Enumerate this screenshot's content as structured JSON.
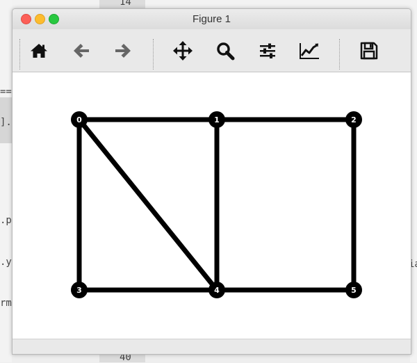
{
  "background": {
    "gutter_top_line": "14",
    "gutter_bottom_line": "40",
    "left_fragments": [
      "==",
      "].p",
      ".p",
      ".y",
      "rm"
    ],
    "right_fragment": "ia"
  },
  "window": {
    "title": "Figure 1",
    "controls": [
      "close",
      "minimize",
      "zoom"
    ]
  },
  "toolbar": {
    "buttons": [
      {
        "name": "home",
        "icon": "home-icon"
      },
      {
        "name": "back",
        "icon": "arrow-left-icon"
      },
      {
        "name": "forward",
        "icon": "arrow-right-icon"
      },
      {
        "name": "pan",
        "icon": "move-icon"
      },
      {
        "name": "zoom",
        "icon": "magnifier-icon"
      },
      {
        "name": "subplots",
        "icon": "sliders-icon"
      },
      {
        "name": "edit-axes",
        "icon": "line-chart-icon"
      },
      {
        "name": "save",
        "icon": "floppy-disk-icon"
      }
    ]
  },
  "graph": {
    "nodes": [
      {
        "id": "0",
        "col": 0,
        "row": 0
      },
      {
        "id": "1",
        "col": 1,
        "row": 0
      },
      {
        "id": "2",
        "col": 2,
        "row": 0
      },
      {
        "id": "3",
        "col": 0,
        "row": 1
      },
      {
        "id": "4",
        "col": 1,
        "row": 1
      },
      {
        "id": "5",
        "col": 2,
        "row": 1
      }
    ],
    "edges": [
      [
        "0",
        "1"
      ],
      [
        "1",
        "2"
      ],
      [
        "0",
        "3"
      ],
      [
        "0",
        "4"
      ],
      [
        "1",
        "4"
      ],
      [
        "2",
        "5"
      ],
      [
        "3",
        "4"
      ],
      [
        "4",
        "5"
      ]
    ],
    "node_color": "#000000",
    "edge_color": "#000000",
    "label_color": "#ffffff"
  }
}
